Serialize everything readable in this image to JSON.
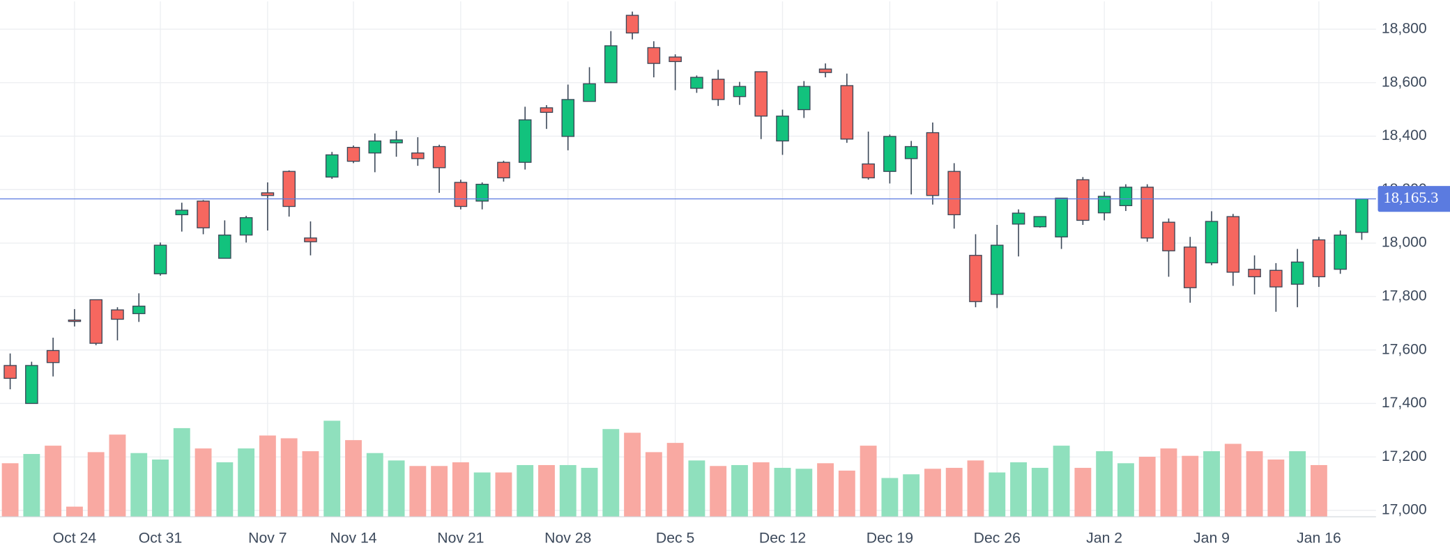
{
  "chart_data": {
    "type": "candlestick",
    "categories": [
      null,
      null,
      null,
      "Oct 24",
      null,
      null,
      null,
      "Oct 31",
      null,
      null,
      null,
      null,
      "Nov 7",
      null,
      null,
      null,
      "Nov 14",
      null,
      null,
      null,
      null,
      "Nov 21",
      null,
      null,
      null,
      null,
      "Nov 28",
      null,
      null,
      null,
      null,
      "Dec 5",
      null,
      null,
      null,
      null,
      "Dec 12",
      null,
      null,
      null,
      null,
      "Dec 19",
      null,
      null,
      null,
      null,
      "Dec 26",
      null,
      null,
      null,
      null,
      "Jan 2",
      null,
      null,
      null,
      null,
      "Jan 9",
      null,
      null,
      null,
      null,
      "Jan 16",
      null,
      null
    ],
    "open": [
      17542,
      17400,
      17598,
      17712,
      17788,
      17750,
      17736,
      17885,
      18106,
      18157,
      17943,
      18030,
      18188,
      18268,
      18019,
      18247,
      18358,
      18337,
      18375,
      18337,
      18361,
      18227,
      18157,
      18302,
      18302,
      18506,
      18399,
      18530,
      18600,
      18852,
      18731,
      18696,
      18579,
      18613,
      18548,
      18641,
      18382,
      18499,
      18651,
      18589,
      18296,
      18268,
      18316,
      18413,
      18268,
      17954,
      17808,
      18071,
      18061,
      18023,
      18237,
      18113,
      18140,
      18209,
      18078,
      17985,
      17926,
      18099,
      17902,
      17898,
      17846,
      18012,
      17902,
      18040
    ],
    "high": [
      17587,
      17556,
      17646,
      17753,
      17788,
      17760,
      17812,
      18002,
      18151,
      18161,
      18085,
      18102,
      18227,
      18272,
      18081,
      18341,
      18365,
      18410,
      18420,
      18396,
      18368,
      18237,
      18227,
      18308,
      18510,
      18516,
      18593,
      18658,
      18793,
      18866,
      18755,
      18706,
      18627,
      18648,
      18603,
      18641,
      18499,
      18606,
      18672,
      18634,
      18417,
      18406,
      18382,
      18451,
      18299,
      18033,
      18068,
      18126,
      18099,
      18168,
      18247,
      18192,
      18220,
      18220,
      18092,
      18023,
      18119,
      18109,
      17954,
      17925,
      17978,
      18023,
      18047,
      18161
    ],
    "low": [
      17453,
      17400,
      17501,
      17688,
      17618,
      17636,
      17705,
      17878,
      18043,
      18033,
      17943,
      18002,
      18047,
      18099,
      17954,
      18240,
      18299,
      18265,
      18323,
      18289,
      18188,
      18126,
      18126,
      18230,
      18275,
      18427,
      18347,
      18530,
      18600,
      18762,
      18620,
      18572,
      18562,
      18513,
      18517,
      18389,
      18330,
      18468,
      18620,
      18375,
      18237,
      18223,
      18182,
      18144,
      18054,
      17760,
      17757,
      17950,
      18058,
      17978,
      18068,
      18085,
      18120,
      18005,
      17874,
      17777,
      17917,
      17840,
      17808,
      17743,
      17760,
      17836,
      17885,
      18012
    ],
    "close": [
      17494,
      17542,
      17553,
      17708,
      17625,
      17715,
      17764,
      17992,
      18123,
      18057,
      18030,
      18095,
      18178,
      18137,
      18005,
      18330,
      18306,
      18382,
      18386,
      18316,
      18282,
      18137,
      18220,
      18244,
      18461,
      18489,
      18537,
      18596,
      18738,
      18786,
      18672,
      18679,
      18620,
      18537,
      18586,
      18475,
      18475,
      18586,
      18638,
      18389,
      18244,
      18399,
      18361,
      18178,
      18106,
      17781,
      17992,
      18112,
      18099,
      18168,
      18085,
      18175,
      18209,
      18019,
      17971,
      17833,
      18081,
      17891,
      17874,
      17836,
      17929,
      17874,
      18030,
      18165.3
    ],
    "volume": [
      58,
      68,
      77,
      11,
      70,
      89,
      69,
      62,
      96,
      74,
      59,
      74,
      88,
      85,
      71,
      104,
      83,
      69,
      61,
      55,
      55,
      59,
      48,
      48,
      56,
      56,
      56,
      53,
      95,
      91,
      70,
      80,
      61,
      55,
      56,
      59,
      53,
      52,
      58,
      50,
      77,
      42,
      46,
      52,
      53,
      61,
      48,
      59,
      53,
      77,
      53,
      71,
      58,
      65,
      74,
      66,
      71,
      79,
      71,
      62,
      71,
      56,
      null,
      null
    ],
    "up_color": "#12c27d",
    "down_color": "#f6675f",
    "up_volume_color": "#8fe0bd",
    "down_volume_color": "#f9a9a2",
    "ylim": [
      16976,
      18904
    ],
    "yticks": [
      {
        "value": 17000,
        "label": "17,000"
      },
      {
        "value": 17200,
        "label": "17,200"
      },
      {
        "value": 17400,
        "label": "17,400"
      },
      {
        "value": 17600,
        "label": "17,600"
      },
      {
        "value": 17800,
        "label": "17,800"
      },
      {
        "value": 18000,
        "label": "18,000"
      },
      {
        "value": 18200,
        "label": "18,200"
      },
      {
        "value": 18400,
        "label": "18,400"
      },
      {
        "value": 18600,
        "label": "18,600"
      },
      {
        "value": 18800,
        "label": "18,800"
      }
    ],
    "last_price": {
      "value": 18165.3,
      "label": "18,165.3"
    },
    "price_line_color": "#5b7be0",
    "grid": true
  }
}
